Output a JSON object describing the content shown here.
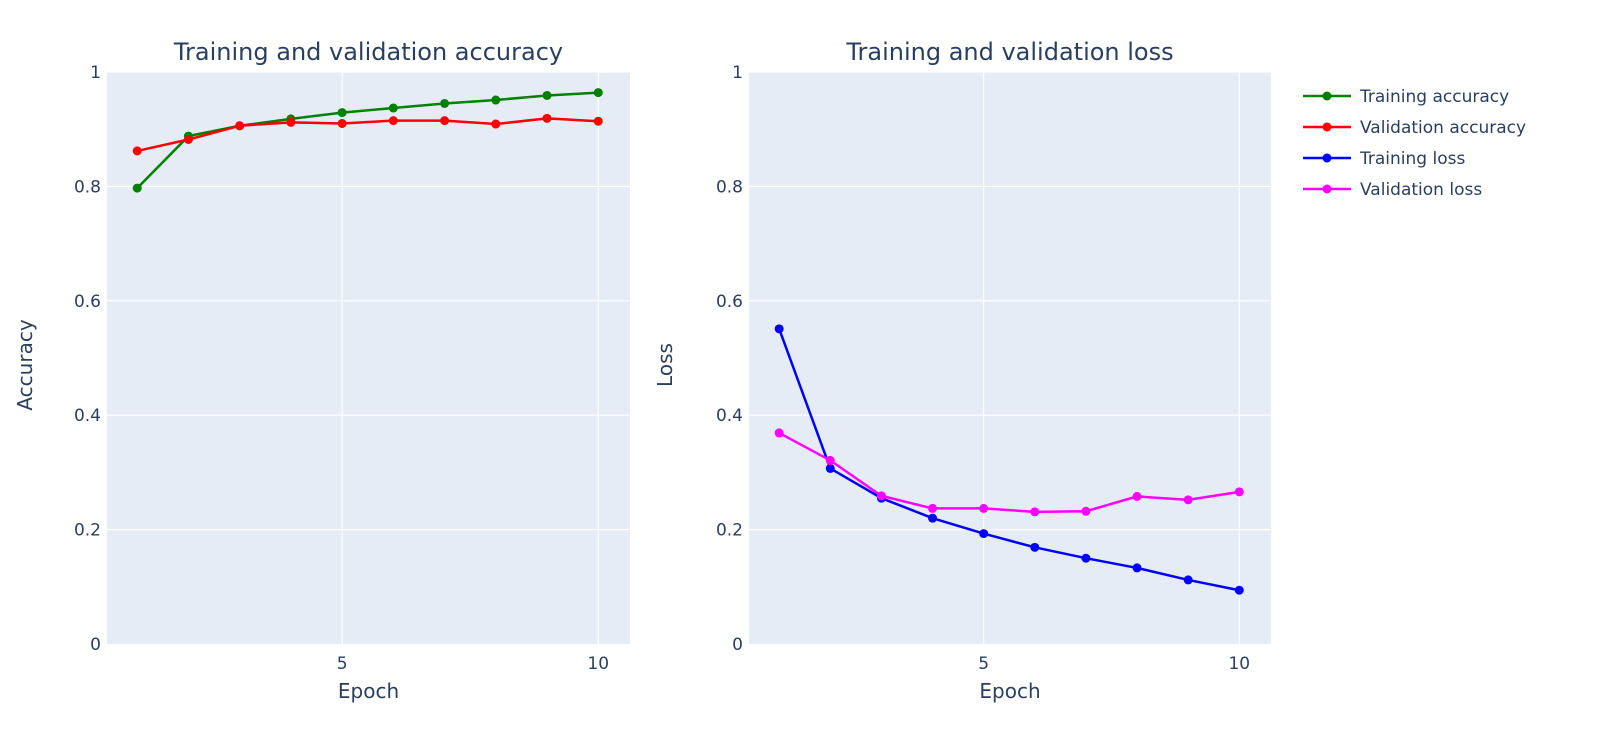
{
  "legend": {
    "placement": "top-right"
  },
  "chart_data": [
    {
      "type": "line",
      "title": "Training and validation accuracy",
      "xlabel": "Epoch",
      "ylabel": "Accuracy",
      "xlim": [
        0.41,
        10.62
      ],
      "ylim": [
        0,
        1
      ],
      "grid": true,
      "x_ticks": [
        5,
        10
      ],
      "x_tick_labels": [
        "5",
        "10"
      ],
      "y_ticks": [
        0,
        0.2,
        0.4,
        0.6,
        0.8,
        1
      ],
      "y_tick_labels": [
        "0",
        "0.2",
        "0.4",
        "0.6",
        "0.8",
        "1"
      ],
      "x": [
        1,
        2,
        3,
        4,
        5,
        6,
        7,
        8,
        9,
        10
      ],
      "series": [
        {
          "name": "Training accuracy",
          "color": "#008000",
          "values": [
            0.797,
            0.888,
            0.906,
            0.918,
            0.929,
            0.937,
            0.945,
            0.951,
            0.959,
            0.964
          ]
        },
        {
          "name": "Validation accuracy",
          "color": "#ff0000",
          "values": [
            0.862,
            0.882,
            0.906,
            0.912,
            0.91,
            0.915,
            0.915,
            0.909,
            0.919,
            0.914
          ]
        }
      ]
    },
    {
      "type": "line",
      "title": "Training and validation loss",
      "xlabel": "Epoch",
      "ylabel": "Loss",
      "xlim": [
        0.41,
        10.62
      ],
      "ylim": [
        0,
        1
      ],
      "grid": true,
      "x_ticks": [
        5,
        10
      ],
      "x_tick_labels": [
        "5",
        "10"
      ],
      "y_ticks": [
        0,
        0.2,
        0.4,
        0.6,
        0.8,
        1
      ],
      "y_tick_labels": [
        "0",
        "0.2",
        "0.4",
        "0.6",
        "0.8",
        "1"
      ],
      "x": [
        1,
        2,
        3,
        4,
        5,
        6,
        7,
        8,
        9,
        10
      ],
      "series": [
        {
          "name": "Training loss",
          "color": "#0000ff",
          "values": [
            0.551,
            0.307,
            0.255,
            0.22,
            0.193,
            0.169,
            0.15,
            0.133,
            0.112,
            0.094
          ]
        },
        {
          "name": "Validation loss",
          "color": "#ff00ff",
          "values": [
            0.369,
            0.321,
            0.259,
            0.237,
            0.237,
            0.231,
            0.232,
            0.258,
            0.252,
            0.266
          ]
        }
      ]
    }
  ]
}
